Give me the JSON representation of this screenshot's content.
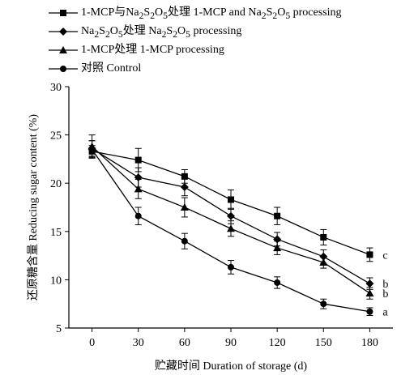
{
  "chart_data": {
    "type": "line",
    "xlabel": "贮藏时间 Duration of storage (d)",
    "ylabel": "还原糖含量 Reducing sugar content (%)",
    "x": [
      0,
      30,
      60,
      90,
      120,
      150,
      180
    ],
    "xticks": [
      "0",
      "30",
      "60",
      "90",
      "120",
      "150",
      "180"
    ],
    "yticks": [
      "5",
      "10",
      "15",
      "20",
      "25",
      "30"
    ],
    "xlim": [
      -15,
      195
    ],
    "ylim": [
      5,
      30
    ],
    "grid": false,
    "legend_position": "top-left",
    "series": [
      {
        "name": "1-MCP与Na2S2O5处理 1-MCP and Na2S2O5 processing",
        "legend_html": "1-MCP与Na<sub>2</sub>S<sub>2</sub>O<sub>5</sub>处理 1-MCP and Na<sub>2</sub>S<sub>2</sub>O<sub>5</sub> processing",
        "marker": "square",
        "values": [
          23.3,
          22.4,
          20.7,
          18.3,
          16.6,
          14.4,
          12.6
        ],
        "errors": [
          0.6,
          1.2,
          0.7,
          1.0,
          0.9,
          0.8,
          0.7
        ],
        "end_label": "c"
      },
      {
        "name": "Na2S2O5处理 Na2S2O5 processing",
        "legend_html": "Na<sub>2</sub>S<sub>2</sub>O<sub>5</sub>处理 Na<sub>2</sub>S<sub>2</sub>O<sub>5</sub> processing",
        "marker": "diamond",
        "values": [
          23.6,
          20.6,
          19.6,
          16.6,
          14.2,
          12.4,
          9.6
        ],
        "errors": [
          0.8,
          1.0,
          0.9,
          0.8,
          0.7,
          0.7,
          0.6
        ],
        "end_label": "b"
      },
      {
        "name": "1-MCP处理 1-MCP processing",
        "legend_html": "1-MCP处理 1-MCP processing",
        "marker": "triangle",
        "values": [
          23.8,
          19.4,
          17.5,
          15.3,
          13.3,
          11.8,
          8.6
        ],
        "errors": [
          1.2,
          1.0,
          1.0,
          0.8,
          0.7,
          0.6,
          0.6
        ],
        "end_label": "b"
      },
      {
        "name": "对照 Control",
        "legend_html": "对照 Control",
        "marker": "circle",
        "values": [
          23.5,
          16.6,
          14.0,
          11.3,
          9.7,
          7.5,
          6.7
        ],
        "errors": [
          0.9,
          0.9,
          0.8,
          0.7,
          0.6,
          0.5,
          0.4
        ],
        "end_label": "a"
      }
    ]
  }
}
